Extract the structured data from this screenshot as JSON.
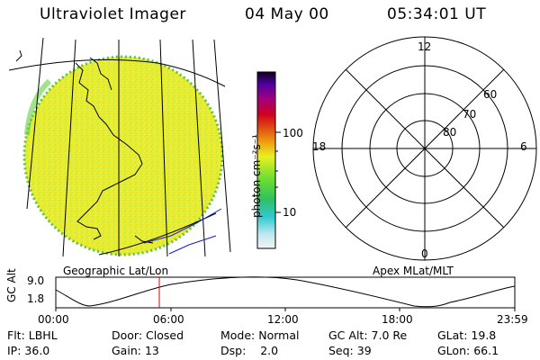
{
  "header": {
    "title": "Ultraviolet Imager",
    "date": "04 May 00",
    "time": "05:34:01 UT"
  },
  "left_panel": {
    "caption": "Geographic Lat/Lon"
  },
  "colorbar": {
    "label": "photon cm⁻²s⁻¹",
    "ticks": [
      "100",
      "10"
    ],
    "scale": "log"
  },
  "right_panel": {
    "caption": "Apex MLat/MLT",
    "mlt_labels": {
      "top": "12",
      "left": "18",
      "right": "6",
      "bottom": "0"
    },
    "lat_labels": [
      "60",
      "70",
      "80"
    ]
  },
  "timeline": {
    "ylabel": "GC Alt",
    "y_ticks": [
      "9.0",
      "1.8"
    ],
    "x_ticks": [
      "00:00",
      "06:00",
      "12:00",
      "18:00",
      "23:59"
    ],
    "marker_time": "05:34"
  },
  "info": {
    "row1": [
      {
        "label": "Flt:",
        "value": "LBHL"
      },
      {
        "label": "Door:",
        "value": "Closed"
      },
      {
        "label": "Mode:",
        "value": "Normal"
      },
      {
        "label": "GC Alt:",
        "value": "7.0 Re"
      },
      {
        "label": "GLat:",
        "value": "19.8"
      }
    ],
    "row2": [
      {
        "label": "IP:",
        "value": "36.0"
      },
      {
        "label": "Gain:",
        "value": "13"
      },
      {
        "label": "Dsp:",
        "value": "2.0"
      },
      {
        "label": "Seq:",
        "value": "39"
      },
      {
        "label": "GLon:",
        "value": "66.1"
      }
    ]
  },
  "colors": {
    "disk": "#e8ec2c",
    "marker": "#e00000",
    "line": "#000000",
    "coast_blue": "#1a1acc"
  }
}
